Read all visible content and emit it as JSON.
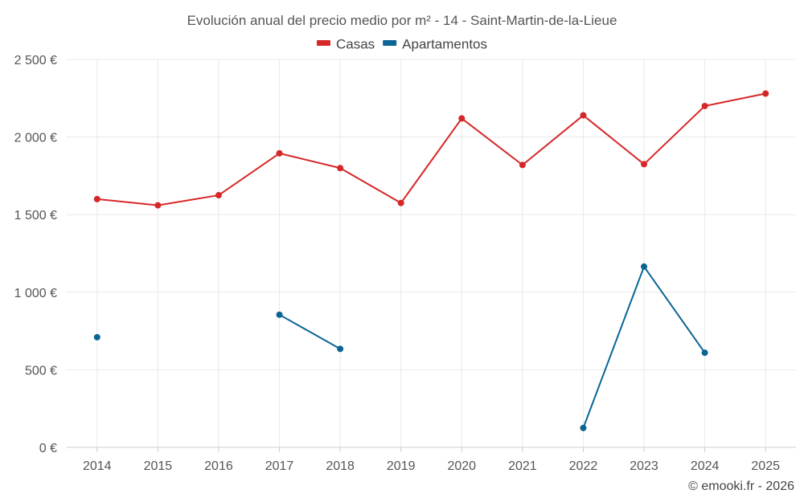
{
  "chart_data": {
    "type": "line",
    "title": "Evolución anual del precio medio por m² - 14 - Saint-Martin-de-la-Lieue",
    "xlabel": "",
    "ylabel": "",
    "categories": [
      "2014",
      "2015",
      "2016",
      "2017",
      "2018",
      "2019",
      "2020",
      "2021",
      "2022",
      "2023",
      "2024",
      "2025"
    ],
    "ylim": [
      0,
      2500
    ],
    "yticks": [
      0,
      500,
      1000,
      1500,
      2000,
      2500
    ],
    "ytick_labels": [
      "0 €",
      "500 €",
      "1 000 €",
      "1 500 €",
      "2 000 €",
      "2 500 €"
    ],
    "grid": true,
    "legend_position": "top-center",
    "series": [
      {
        "name": "Casas",
        "color": "#d62728",
        "values": [
          1600,
          1560,
          1625,
          1895,
          1800,
          1575,
          2120,
          1820,
          2140,
          1825,
          2200,
          2280
        ]
      },
      {
        "name": "Apartamentos",
        "color": "#0a6494",
        "values": [
          710,
          null,
          null,
          855,
          635,
          null,
          null,
          null,
          125,
          1165,
          610,
          null
        ]
      }
    ]
  },
  "credit": "© emooki.fr - 2026"
}
